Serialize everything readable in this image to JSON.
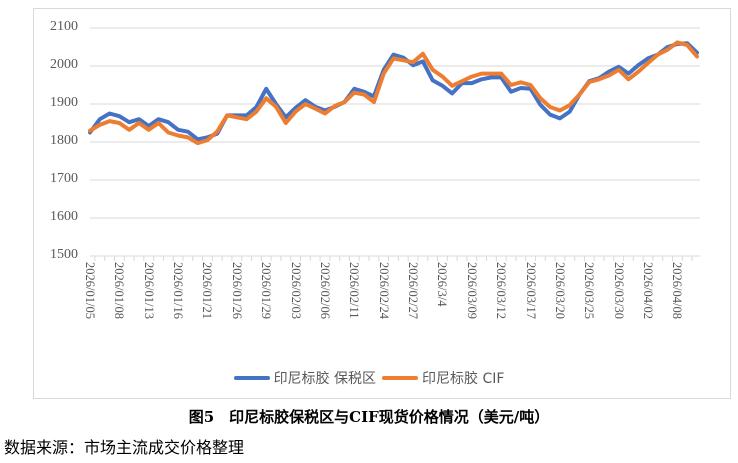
{
  "chart_data": {
    "type": "line",
    "title": "图5　印尼标胶保税区与CIF现货价格情况（美元/吨）",
    "xlabel": "",
    "ylabel": "",
    "ylim": [
      1500,
      2100
    ],
    "yticks": [
      1500,
      1600,
      1700,
      1800,
      1900,
      2000,
      2100
    ],
    "grid": true,
    "legend_position": "bottom",
    "x_tick_labels": [
      "2026/01/05",
      "2026/01/08",
      "2026/01/13",
      "2026/01/16",
      "2026/01/21",
      "2026/01/26",
      "2026/01/29",
      "2026/02/03",
      "2026/02/06",
      "2026/02/11",
      "2026/02/24",
      "2026/02/27",
      "2026/3/4",
      "2026/03/09",
      "2026/03/12",
      "2026/03/17",
      "2026/03/20",
      "2026/03/25",
      "2026/03/30",
      "2026/04/02",
      "2026/04/08"
    ],
    "series": [
      {
        "name": "印尼标胶 保税区",
        "color": "#4472C4",
        "values": [
          1825,
          1860,
          1875,
          1868,
          1852,
          1860,
          1842,
          1860,
          1852,
          1832,
          1827,
          1807,
          1812,
          1822,
          1870,
          1870,
          1870,
          1892,
          1940,
          1900,
          1865,
          1890,
          1910,
          1893,
          1883,
          1893,
          1905,
          1940,
          1932,
          1920,
          1990,
          2030,
          2022,
          2002,
          2012,
          1962,
          1948,
          1928,
          1955,
          1955,
          1965,
          1970,
          1970,
          1932,
          1942,
          1940,
          1898,
          1872,
          1862,
          1880,
          1925,
          1960,
          1968,
          1985,
          1998,
          1980,
          2002,
          2020,
          2030,
          2050,
          2058,
          2060,
          2035
        ]
      },
      {
        "name": "印尼标胶 CIF",
        "color": "#ED7D31",
        "values": [
          1830,
          1845,
          1855,
          1850,
          1832,
          1850,
          1832,
          1850,
          1825,
          1817,
          1812,
          1797,
          1805,
          1828,
          1870,
          1865,
          1860,
          1880,
          1915,
          1893,
          1850,
          1880,
          1900,
          1888,
          1875,
          1895,
          1905,
          1930,
          1925,
          1905,
          1980,
          2020,
          2015,
          2010,
          2032,
          1990,
          1972,
          1948,
          1960,
          1972,
          1980,
          1980,
          1980,
          1950,
          1957,
          1950,
          1915,
          1892,
          1883,
          1897,
          1925,
          1958,
          1965,
          1975,
          1990,
          1965,
          1985,
          2008,
          2030,
          2043,
          2062,
          2055,
          2025
        ]
      }
    ]
  },
  "legend": {
    "items": [
      {
        "label": "印尼标胶 保税区",
        "color": "#4472C4"
      },
      {
        "label": "印尼标胶 CIF",
        "color": "#ED7D31"
      }
    ]
  },
  "caption": "图5　印尼标胶保税区与CIF现货价格情况（美元/吨）",
  "source": "数据来源：市场主流成交价格整理"
}
